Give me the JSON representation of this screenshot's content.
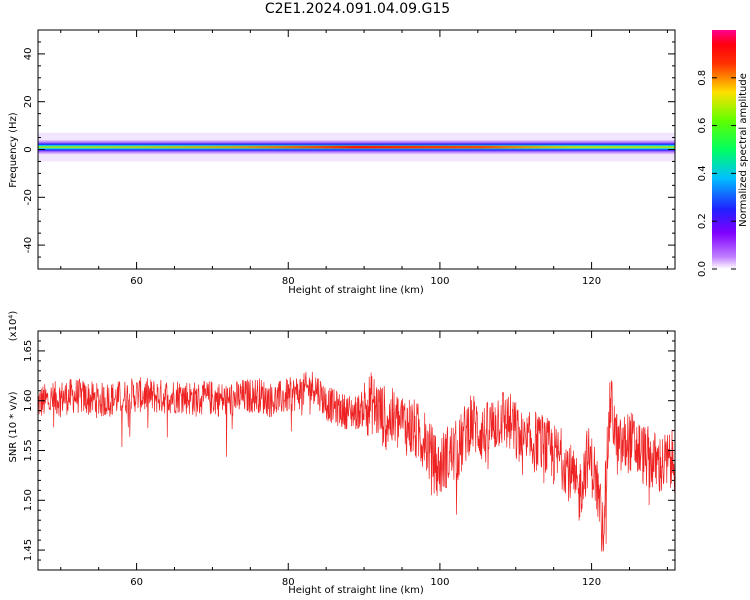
{
  "title": "C2E1.2024.091.04.09.G15",
  "chart_data": [
    {
      "type": "heatmap",
      "title": "",
      "xlabel": "Height of straight line (km)",
      "ylabel": "Frequency (Hz)",
      "xlim": [
        47,
        131
      ],
      "ylim": [
        -50,
        50
      ],
      "xticks": [
        60,
        80,
        100,
        120
      ],
      "yticks": [
        -40,
        -20,
        0,
        20,
        40
      ],
      "band_center_hz": 1,
      "band_halfwidth_hz": 3,
      "colorbar": {
        "label": "Normalized spectral amplitude",
        "range": [
          0,
          1
        ],
        "ticks": [
          "0.0",
          "0.2",
          "0.4",
          "0.6",
          "0.8"
        ]
      },
      "colors": {
        "low": "#7f00ff",
        "mid": "#00ff80",
        "high": "#ff0000",
        "top": "#ff00a0"
      }
    },
    {
      "type": "line",
      "title": "",
      "xlabel": "Height of straight line (km)",
      "ylabel": "SNR (10 * v/v)",
      "scale_label": "(x10⁴)",
      "xlim": [
        47,
        131
      ],
      "ylim": [
        1.43,
        1.67
      ],
      "xticks": [
        60,
        80,
        100,
        120
      ],
      "yticks": [
        "1.45",
        "1.50",
        "1.55",
        "1.60",
        "1.65"
      ],
      "series": [
        {
          "name": "",
          "color": "#ee2222",
          "x": [
            47,
            50,
            52,
            55,
            58,
            60,
            63,
            66,
            68,
            70,
            72,
            74,
            76,
            78,
            80,
            82,
            83.5,
            85,
            87,
            89,
            91,
            92.5,
            94,
            96,
            98,
            99.7,
            101,
            102.5,
            104,
            106,
            108,
            109.5,
            111,
            113,
            115,
            116.5,
            118.3,
            119.5,
            120.5,
            121.5,
            122.5,
            123.5,
            125,
            127,
            129,
            131
          ],
          "y": [
            1.598,
            1.603,
            1.605,
            1.6,
            1.603,
            1.606,
            1.604,
            1.605,
            1.601,
            1.603,
            1.6,
            1.604,
            1.606,
            1.6,
            1.605,
            1.61,
            1.615,
            1.598,
            1.59,
            1.588,
            1.598,
            1.585,
            1.58,
            1.575,
            1.56,
            1.53,
            1.545,
            1.55,
            1.58,
            1.565,
            1.585,
            1.575,
            1.555,
            1.56,
            1.545,
            1.54,
            1.505,
            1.545,
            1.525,
            1.47,
            1.6,
            1.55,
            1.56,
            1.545,
            1.535,
            1.54
          ]
        }
      ]
    }
  ]
}
